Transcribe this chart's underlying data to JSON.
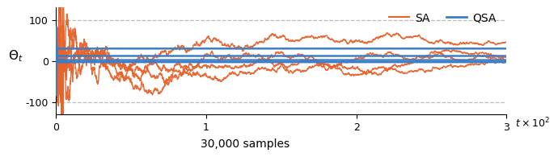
{
  "ylabel": "$\\Theta_t$",
  "xlabel": "30,000 samples",
  "x_axis_label_extra": "$t \\times 10^2$",
  "xlim": [
    0,
    300
  ],
  "ylim": [
    -130,
    130
  ],
  "yticks": [
    -100,
    0,
    100
  ],
  "xticks": [
    0,
    100,
    200,
    300
  ],
  "xticklabels": [
    "0",
    "1",
    "2",
    "3"
  ],
  "sa_color": "#E8622A",
  "qsa_color": "#3B7EC8",
  "background_color": "#ffffff",
  "grid_color": "#BBBBBB",
  "legend_sa": "SA",
  "legend_qsa": "QSA",
  "qsa_finals": [
    30,
    12,
    2,
    -3
  ],
  "sa_finals": [
    30,
    15,
    5,
    -5
  ]
}
